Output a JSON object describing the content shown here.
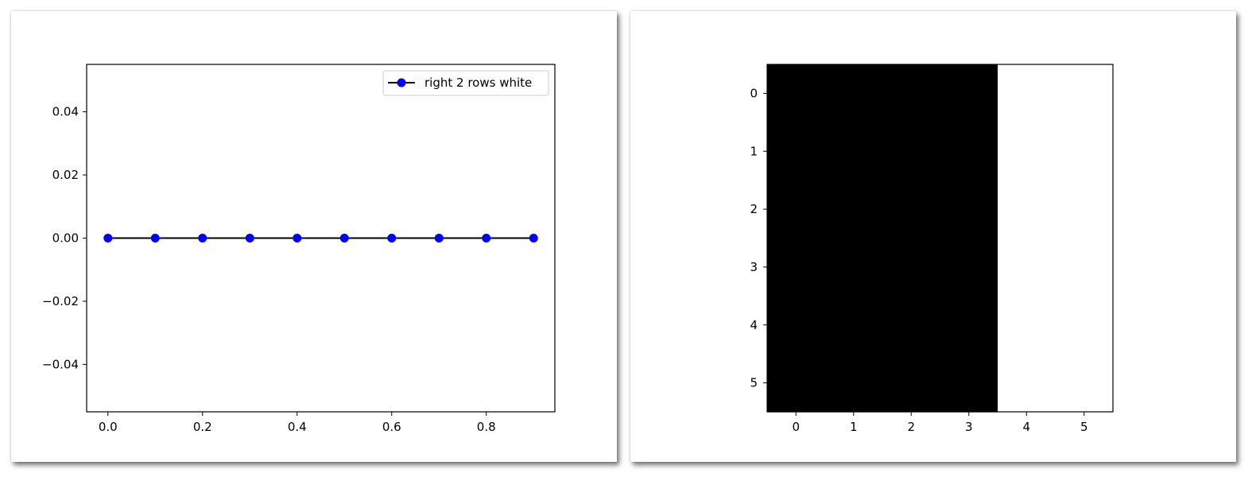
{
  "chart_data": [
    {
      "type": "line",
      "title": "",
      "xlabel": "",
      "ylabel": "",
      "x": [
        0.0,
        0.1,
        0.2,
        0.3,
        0.4,
        0.5,
        0.6,
        0.7,
        0.8,
        0.9
      ],
      "series": [
        {
          "name": "right 2 rows white",
          "values": [
            0,
            0,
            0,
            0,
            0,
            0,
            0,
            0,
            0,
            0
          ],
          "line_color": "#000000",
          "marker_color": "#0000ff",
          "marker": "circle"
        }
      ],
      "xlim": [
        -0.045,
        0.945
      ],
      "ylim": [
        -0.055,
        0.055
      ],
      "xticks": [
        0.0,
        0.2,
        0.4,
        0.6,
        0.8
      ],
      "xtick_labels": [
        "0.0",
        "0.2",
        "0.4",
        "0.6",
        "0.8"
      ],
      "yticks": [
        0.04,
        0.02,
        0.0,
        -0.02,
        -0.04
      ],
      "ytick_labels": [
        "0.04",
        "0.02",
        "0.00",
        "−0.02",
        "−0.04"
      ],
      "legend": {
        "position": "top-right"
      },
      "grid": false
    },
    {
      "type": "heatmap",
      "title": "",
      "rows": 6,
      "cols": 6,
      "values": [
        [
          0,
          0,
          0,
          0,
          1,
          1
        ],
        [
          0,
          0,
          0,
          0,
          1,
          1
        ],
        [
          0,
          0,
          0,
          0,
          1,
          1
        ],
        [
          0,
          0,
          0,
          0,
          1,
          1
        ],
        [
          0,
          0,
          0,
          0,
          1,
          1
        ],
        [
          0,
          0,
          0,
          0,
          1,
          1
        ]
      ],
      "colormap": {
        "0": "#000000",
        "1": "#ffffff"
      },
      "xtick_labels": [
        "0",
        "1",
        "2",
        "3",
        "4",
        "5"
      ],
      "ytick_labels": [
        "0",
        "1",
        "2",
        "3",
        "4",
        "5"
      ],
      "grid": false
    }
  ]
}
